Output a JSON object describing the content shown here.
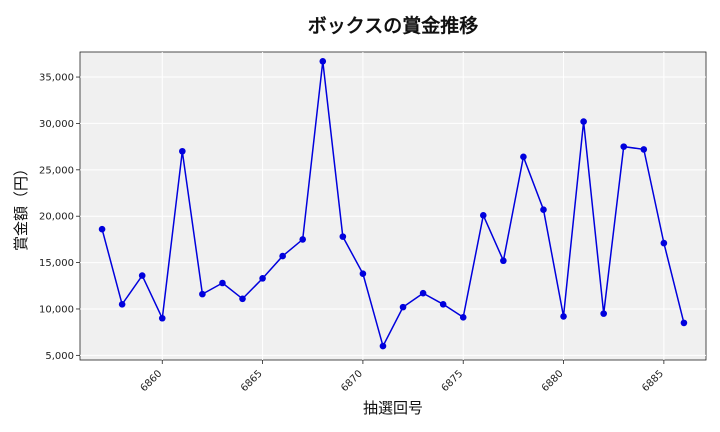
{
  "chart_data": {
    "type": "line",
    "title": "ボックスの賞金推移",
    "xlabel": "抽選回号",
    "ylabel": "賞金額（円）",
    "xlim": [
      6855.9,
      6887.1
    ],
    "ylim": [
      4500,
      37700
    ],
    "xticks": [
      6860,
      6865,
      6870,
      6875,
      6880,
      6885
    ],
    "yticks": [
      5000,
      10000,
      15000,
      20000,
      25000,
      30000,
      35000
    ],
    "ytick_labels": [
      "5,000",
      "10,000",
      "15,000",
      "20,000",
      "25,000",
      "30,000",
      "35,000"
    ],
    "grid": true,
    "background": "#f0f0f0",
    "line_color": "#0000dd",
    "series": [
      {
        "x": [
          6857,
          6858,
          6859,
          6860,
          6861,
          6862,
          6863,
          6864,
          6865,
          6866,
          6867,
          6868,
          6869,
          6870,
          6871,
          6872,
          6873,
          6874,
          6875,
          6876,
          6877,
          6878,
          6879,
          6880,
          6881,
          6882,
          6883,
          6884,
          6885,
          6886
        ],
        "values": [
          18600,
          10500,
          13600,
          9000,
          27000,
          11600,
          12800,
          11100,
          13300,
          15700,
          17500,
          36700,
          17800,
          13800,
          6000,
          10200,
          11700,
          10500,
          9100,
          20100,
          15200,
          26400,
          20700,
          9200,
          30200,
          9500,
          27500,
          27200,
          17100,
          8500
        ]
      }
    ]
  }
}
